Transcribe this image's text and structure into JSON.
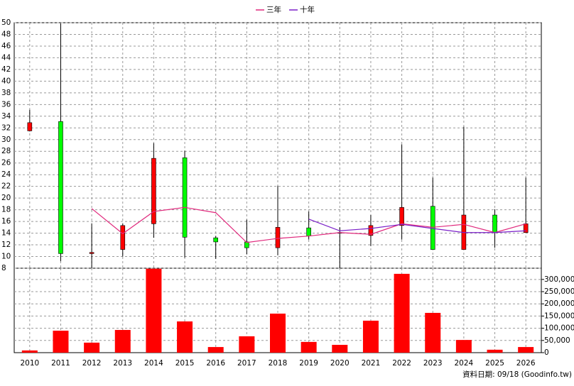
{
  "chart_data": {
    "type": "candlestick",
    "legend": "top",
    "grid": true,
    "categories": [
      "2010",
      "2011",
      "2012",
      "2013",
      "2014",
      "2015",
      "2016",
      "2017",
      "2018",
      "2019",
      "2020",
      "2021",
      "2022",
      "2023",
      "2024",
      "2025",
      "2026"
    ],
    "open": [
      31.5,
      33.1,
      10.5,
      11.2,
      15.6,
      26.9,
      13.2,
      12.5,
      11.5,
      14.9,
      14.0,
      13.6,
      15.3,
      18.6,
      11.2,
      17.1,
      14.1
    ],
    "high": [
      35.1,
      49.9,
      15.6,
      15.6,
      29.4,
      28.1,
      13.5,
      16.3,
      22.1,
      17.7,
      15.0,
      17.1,
      29.2,
      23.5,
      32.2,
      18.1,
      23.5
    ],
    "low": [
      31.4,
      9.2,
      8.0,
      10.0,
      13.2,
      9.8,
      9.6,
      10.4,
      10.2,
      12.9,
      8.0,
      11.8,
      12.9,
      11.2,
      11.2,
      11.5,
      14.1
    ],
    "close": [
      32.9,
      10.5,
      10.7,
      15.3,
      26.8,
      13.3,
      12.5,
      11.5,
      15.0,
      13.5,
      14.1,
      15.3,
      18.4,
      11.2,
      17.1,
      14.1,
      15.6
    ],
    "up_color": "#ff0000",
    "down_color": "#00ff00",
    "series": [
      {
        "name": "三年",
        "color": "#e0287c",
        "values": [
          null,
          null,
          18.2,
          13.9,
          17.7,
          18.4,
          17.5,
          12.4,
          13.1,
          13.5,
          14.1,
          13.8,
          15.6,
          15.0,
          15.5,
          14.1,
          15.6
        ]
      },
      {
        "name": "十年",
        "color": "#7a1fc8",
        "values": [
          null,
          null,
          null,
          null,
          null,
          null,
          null,
          null,
          null,
          16.4,
          14.4,
          14.8,
          15.5,
          14.8,
          14.1,
          14.1,
          14.4
        ]
      }
    ],
    "ylim": [
      8,
      50
    ],
    "yticks": [
      8,
      10,
      12,
      14,
      16,
      18,
      20,
      22,
      24,
      26,
      28,
      30,
      32,
      34,
      36,
      38,
      40,
      42,
      44,
      46,
      48,
      50
    ],
    "volume": {
      "type": "bar",
      "color": "#ff0000",
      "values": [
        9000,
        90000,
        41000,
        93000,
        344000,
        128000,
        23000,
        67000,
        160000,
        44000,
        32000,
        131000,
        323000,
        163000,
        52000,
        12000,
        23000
      ],
      "ylim": [
        0,
        346000
      ],
      "yticks": [
        0,
        {
          "value": 50000,
          "label": "50,000"
        },
        {
          "value": 100000,
          "label": "100,000"
        },
        {
          "value": 150000,
          "label": "150,000"
        },
        {
          "value": 200000,
          "label": "200,000"
        },
        {
          "value": 250000,
          "label": "250,000"
        },
        {
          "value": 300000,
          "label": "300,000"
        }
      ]
    },
    "footer": "資料日期: 09/18 (Goodinfo.tw)"
  }
}
